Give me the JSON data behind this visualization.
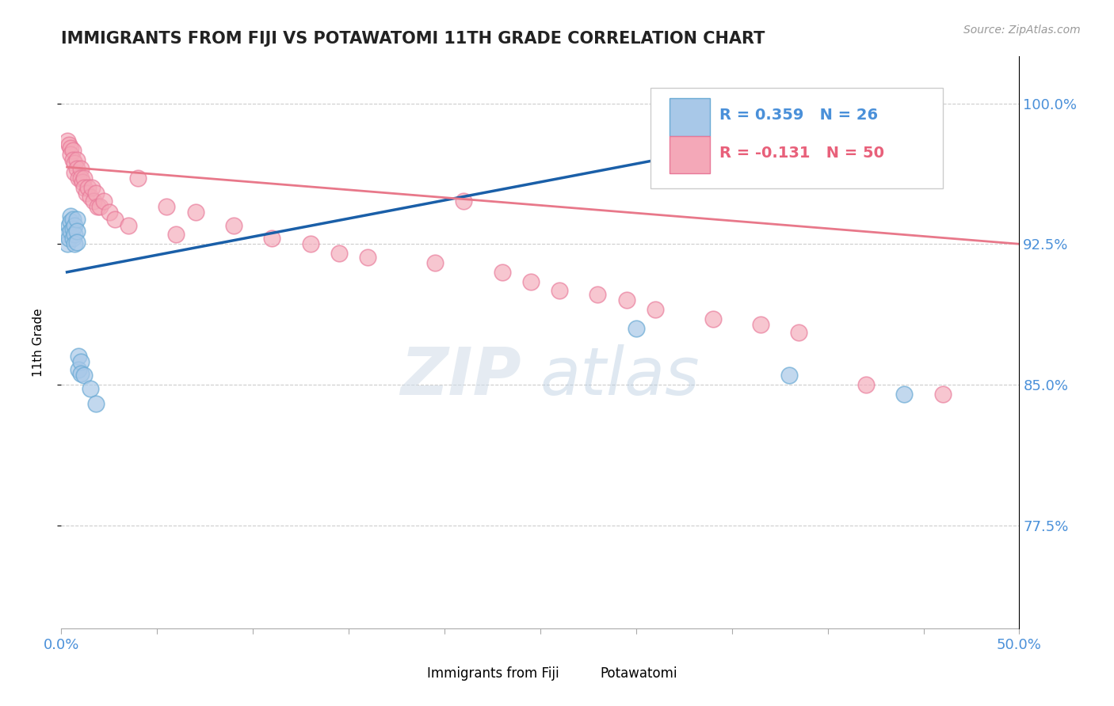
{
  "title": "IMMIGRANTS FROM FIJI VS POTAWATOMI 11TH GRADE CORRELATION CHART",
  "source_text": "Source: ZipAtlas.com",
  "ylabel": "11th Grade",
  "xlim": [
    0.0,
    0.5
  ],
  "ylim": [
    0.72,
    1.025
  ],
  "ytick_positions": [
    0.775,
    0.85,
    0.925,
    1.0
  ],
  "ytick_labels": [
    "77.5%",
    "85.0%",
    "92.5%",
    "100.0%"
  ],
  "R_blue": 0.359,
  "N_blue": 26,
  "R_pink": -0.131,
  "N_pink": 50,
  "blue_color": "#a8c8e8",
  "blue_edge_color": "#6aaad4",
  "pink_color": "#f4a8b8",
  "pink_edge_color": "#e87898",
  "blue_line_color": "#1a5fa8",
  "pink_line_color": "#e8788a",
  "legend_text_blue": "#4a90d9",
  "legend_text_pink": "#e8607a",
  "axis_color": "#4a90d9",
  "title_color": "#222222",
  "source_color": "#999999",
  "blue_x": [
    0.003,
    0.003,
    0.004,
    0.004,
    0.005,
    0.005,
    0.005,
    0.006,
    0.006,
    0.006,
    0.007,
    0.007,
    0.007,
    0.008,
    0.008,
    0.008,
    0.009,
    0.009,
    0.01,
    0.01,
    0.012,
    0.015,
    0.018,
    0.3,
    0.38,
    0.44
  ],
  "blue_y": [
    0.93,
    0.925,
    0.935,
    0.928,
    0.94,
    0.937,
    0.932,
    0.938,
    0.933,
    0.928,
    0.935,
    0.93,
    0.925,
    0.938,
    0.932,
    0.926,
    0.865,
    0.858,
    0.862,
    0.856,
    0.855,
    0.848,
    0.84,
    0.88,
    0.855,
    0.845
  ],
  "pink_x": [
    0.003,
    0.004,
    0.005,
    0.005,
    0.006,
    0.006,
    0.007,
    0.007,
    0.008,
    0.008,
    0.009,
    0.01,
    0.01,
    0.011,
    0.012,
    0.012,
    0.013,
    0.014,
    0.015,
    0.016,
    0.017,
    0.018,
    0.019,
    0.02,
    0.022,
    0.025,
    0.028,
    0.035,
    0.04,
    0.055,
    0.06,
    0.07,
    0.09,
    0.11,
    0.13,
    0.145,
    0.16,
    0.195,
    0.21,
    0.23,
    0.245,
    0.26,
    0.28,
    0.295,
    0.31,
    0.34,
    0.365,
    0.385,
    0.42,
    0.46
  ],
  "pink_y": [
    0.98,
    0.978,
    0.976,
    0.973,
    0.975,
    0.97,
    0.968,
    0.963,
    0.97,
    0.965,
    0.96,
    0.965,
    0.96,
    0.958,
    0.96,
    0.955,
    0.952,
    0.955,
    0.95,
    0.955,
    0.948,
    0.952,
    0.945,
    0.945,
    0.948,
    0.942,
    0.938,
    0.935,
    0.96,
    0.945,
    0.93,
    0.942,
    0.935,
    0.928,
    0.925,
    0.92,
    0.918,
    0.915,
    0.948,
    0.91,
    0.905,
    0.9,
    0.898,
    0.895,
    0.89,
    0.885,
    0.882,
    0.878,
    0.85,
    0.845
  ]
}
